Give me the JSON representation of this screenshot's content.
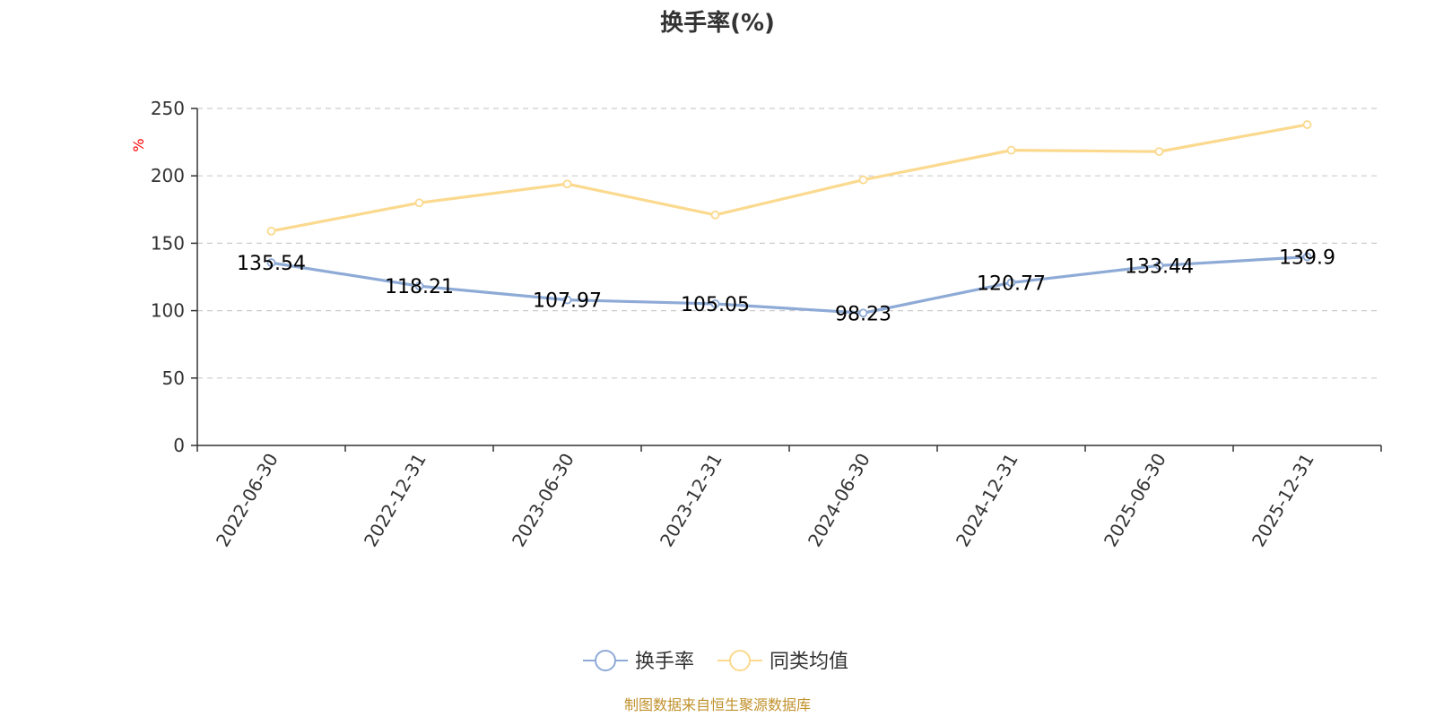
{
  "chart_data": {
    "type": "line",
    "title": "换手率(%)",
    "ylabel": "%",
    "xlabel": "",
    "ylim": [
      0,
      250
    ],
    "yticks": [
      0,
      50,
      100,
      150,
      200,
      250
    ],
    "grid": true,
    "categories": [
      "2022-06-30",
      "2022-12-31",
      "2023-06-30",
      "2023-12-31",
      "2024-06-30",
      "2024-12-31",
      "2025-06-30",
      "2025-12-31"
    ],
    "series": [
      {
        "name": "换手率",
        "color": "#8eaad6",
        "values": [
          135.54,
          118.21,
          107.97,
          105.05,
          98.23,
          120.77,
          133.44,
          139.9
        ],
        "labels": [
          "135.54",
          "118.21",
          "107.97",
          "105.05",
          "98.23",
          "120.77",
          "133.44",
          "139.9"
        ],
        "show_labels": true
      },
      {
        "name": "同类均值",
        "color": "#fbd98e",
        "values": [
          159,
          180,
          194,
          171,
          197,
          219,
          218,
          238
        ],
        "show_labels": false
      }
    ],
    "legend_position": "bottom-center"
  },
  "footer": {
    "source": "制图数据来自恒生聚源数据库"
  }
}
